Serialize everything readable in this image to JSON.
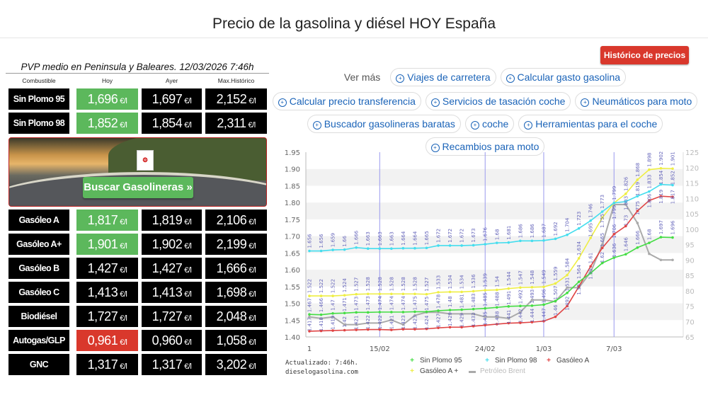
{
  "page_title": "Precio de la gasolina y diésel HOY España",
  "summary": "PVP medio en Peninsula y Baleares. 12/03/2026 7:46h",
  "table": {
    "headers": [
      "Combustible",
      "Hoy",
      "Ayer",
      "Max.Histórico"
    ],
    "unit": "€/l",
    "rows_top": [
      {
        "name": "Sin Plomo 95",
        "hoy": "1,696",
        "ayer": "1,697",
        "max": "2,152",
        "hoy_status": "green"
      },
      {
        "name": "Sin Plomo 98",
        "hoy": "1,852",
        "ayer": "1,854",
        "max": "2,311",
        "hoy_status": "green"
      }
    ],
    "rows_bottom": [
      {
        "name": "Gasóleo A",
        "hoy": "1,817",
        "ayer": "1,819",
        "max": "2,106",
        "hoy_status": "green"
      },
      {
        "name": "Gasóleo A+",
        "hoy": "1,901",
        "ayer": "1,902",
        "max": "2,199",
        "hoy_status": "green"
      },
      {
        "name": "Gasóleo B",
        "hoy": "1,427",
        "ayer": "1,427",
        "max": "1,666",
        "hoy_status": "none"
      },
      {
        "name": "Gasóleo C",
        "hoy": "1,413",
        "ayer": "1,413",
        "max": "1,698",
        "hoy_status": "none"
      },
      {
        "name": "Biodiésel",
        "hoy": "1,727",
        "ayer": "1,727",
        "max": "2,048",
        "hoy_status": "none"
      },
      {
        "name": "Autogas/GLP",
        "hoy": "0,961",
        "ayer": "0,960",
        "max": "1,058",
        "hoy_status": "red"
      },
      {
        "name": "GNC",
        "hoy": "1,317",
        "ayer": "1,317",
        "max": "3,202",
        "hoy_status": "none"
      }
    ]
  },
  "banner": {
    "logo_text": "DG",
    "button": "Buscar Gasolineras »"
  },
  "historico_button": "Histórico de precios »",
  "ver_mas": {
    "label": "Ver más",
    "links": [
      "Viajes de carretera",
      "Calcular gasto gasolina",
      "Calcular precio transferencia",
      "Servicios de tasación coche",
      "Neumáticos para moto",
      "Buscador gasolineras baratas",
      "coche",
      "Herramientas para el coche",
      "Recambios para moto"
    ]
  },
  "colors": {
    "green": "#5cb85c",
    "red": "#d9382c",
    "link": "#1a63b8"
  },
  "footer": {
    "updated": "Actualizado: 7:46h.",
    "site": "dieselogasolina.com"
  },
  "chart_data": {
    "type": "line",
    "x_tick_labels": [
      {
        "index": 0,
        "label": "1"
      },
      {
        "index": 6,
        "label": "15/02"
      },
      {
        "index": 15,
        "label": "24/02"
      },
      {
        "index": 20,
        "label": "1/03"
      },
      {
        "index": 26,
        "label": "7/03"
      }
    ],
    "ylim": [
      1.4,
      1.95
    ],
    "y_ticks": [
      "1.40",
      "1.45",
      "1.50",
      "1.55",
      "1.60",
      "1.65",
      "1.70",
      "1.75",
      "1.80",
      "1.85",
      "1.90",
      "1.95"
    ],
    "y2lim": [
      65,
      125
    ],
    "y2_ticks": [
      "65",
      "70",
      "75",
      "80",
      "85",
      "90",
      "95",
      "100",
      "105",
      "110",
      "115",
      "120",
      "125"
    ],
    "grid": "horizontal bands",
    "legend": "bottom",
    "series": [
      {
        "name": "Sin Plomo 95",
        "color": "#44dd44",
        "axis": "left",
        "labels": true,
        "values": [
          1.467,
          1.466,
          1.47,
          1.471,
          1.473,
          1.473,
          1.474,
          1.474,
          1.474,
          1.475,
          1.475,
          1.478,
          1.48,
          1.481,
          1.483,
          1.485,
          1.488,
          1.491,
          1.492,
          1.493,
          1.496,
          1.507,
          1.531,
          1.564,
          1.59,
          1.62,
          1.636,
          1.646,
          1.666,
          1.68,
          1.697,
          1.696
        ]
      },
      {
        "name": "Sin Plomo 98",
        "color": "#44ddee",
        "axis": "left",
        "labels": true,
        "values": [
          1.656,
          1.656,
          1.659,
          1.66,
          1.666,
          1.663,
          1.663,
          1.663,
          1.664,
          1.664,
          1.665,
          1.672,
          1.672,
          1.672,
          1.673,
          1.676,
          1.68,
          1.681,
          1.686,
          1.686,
          1.687,
          1.692,
          1.704,
          1.723,
          1.746,
          1.773,
          1.799,
          1.803,
          1.819,
          1.833,
          1.854,
          1.852
        ]
      },
      {
        "name": "Gasóleo A",
        "color": "#e04444",
        "axis": "left",
        "labels": true,
        "values": [
          1.417,
          1.418,
          1.419,
          1.42,
          1.421,
          1.422,
          1.422,
          1.421,
          1.423,
          1.423,
          1.424,
          1.427,
          1.429,
          1.429,
          1.432,
          1.435,
          1.438,
          1.441,
          1.442,
          1.444,
          1.447,
          1.46,
          1.492,
          1.55,
          1.61,
          1.665,
          1.706,
          1.73,
          1.775,
          1.806,
          1.819,
          1.817
        ]
      },
      {
        "name": "Gasóleo A +",
        "color": "#eeee44",
        "axis": "left",
        "labels": true,
        "values": [
          1.522,
          1.522,
          1.522,
          1.524,
          1.527,
          1.528,
          1.528,
          1.528,
          1.528,
          1.528,
          1.527,
          1.533,
          1.534,
          1.534,
          1.536,
          1.539,
          1.54,
          1.544,
          1.547,
          1.548,
          1.549,
          1.559,
          1.584,
          1.634,
          1.695,
          1.755,
          1.799,
          1.826,
          1.868,
          1.898,
          1.902,
          1.901
        ]
      },
      {
        "name": "Petróleo Brent",
        "color": "#aaaaaa",
        "axis": "right",
        "labels": false,
        "values": [
          71.5,
          71,
          71.5,
          69,
          69,
          69.5,
          69.5,
          70.5,
          69,
          72,
          73,
          73,
          72.5,
          72.5,
          72.5,
          71.5,
          71.5,
          71,
          73,
          77,
          77,
          76.5,
          81,
          81,
          86,
          95,
          108,
          108,
          102,
          92,
          90,
          90
        ]
      }
    ]
  }
}
